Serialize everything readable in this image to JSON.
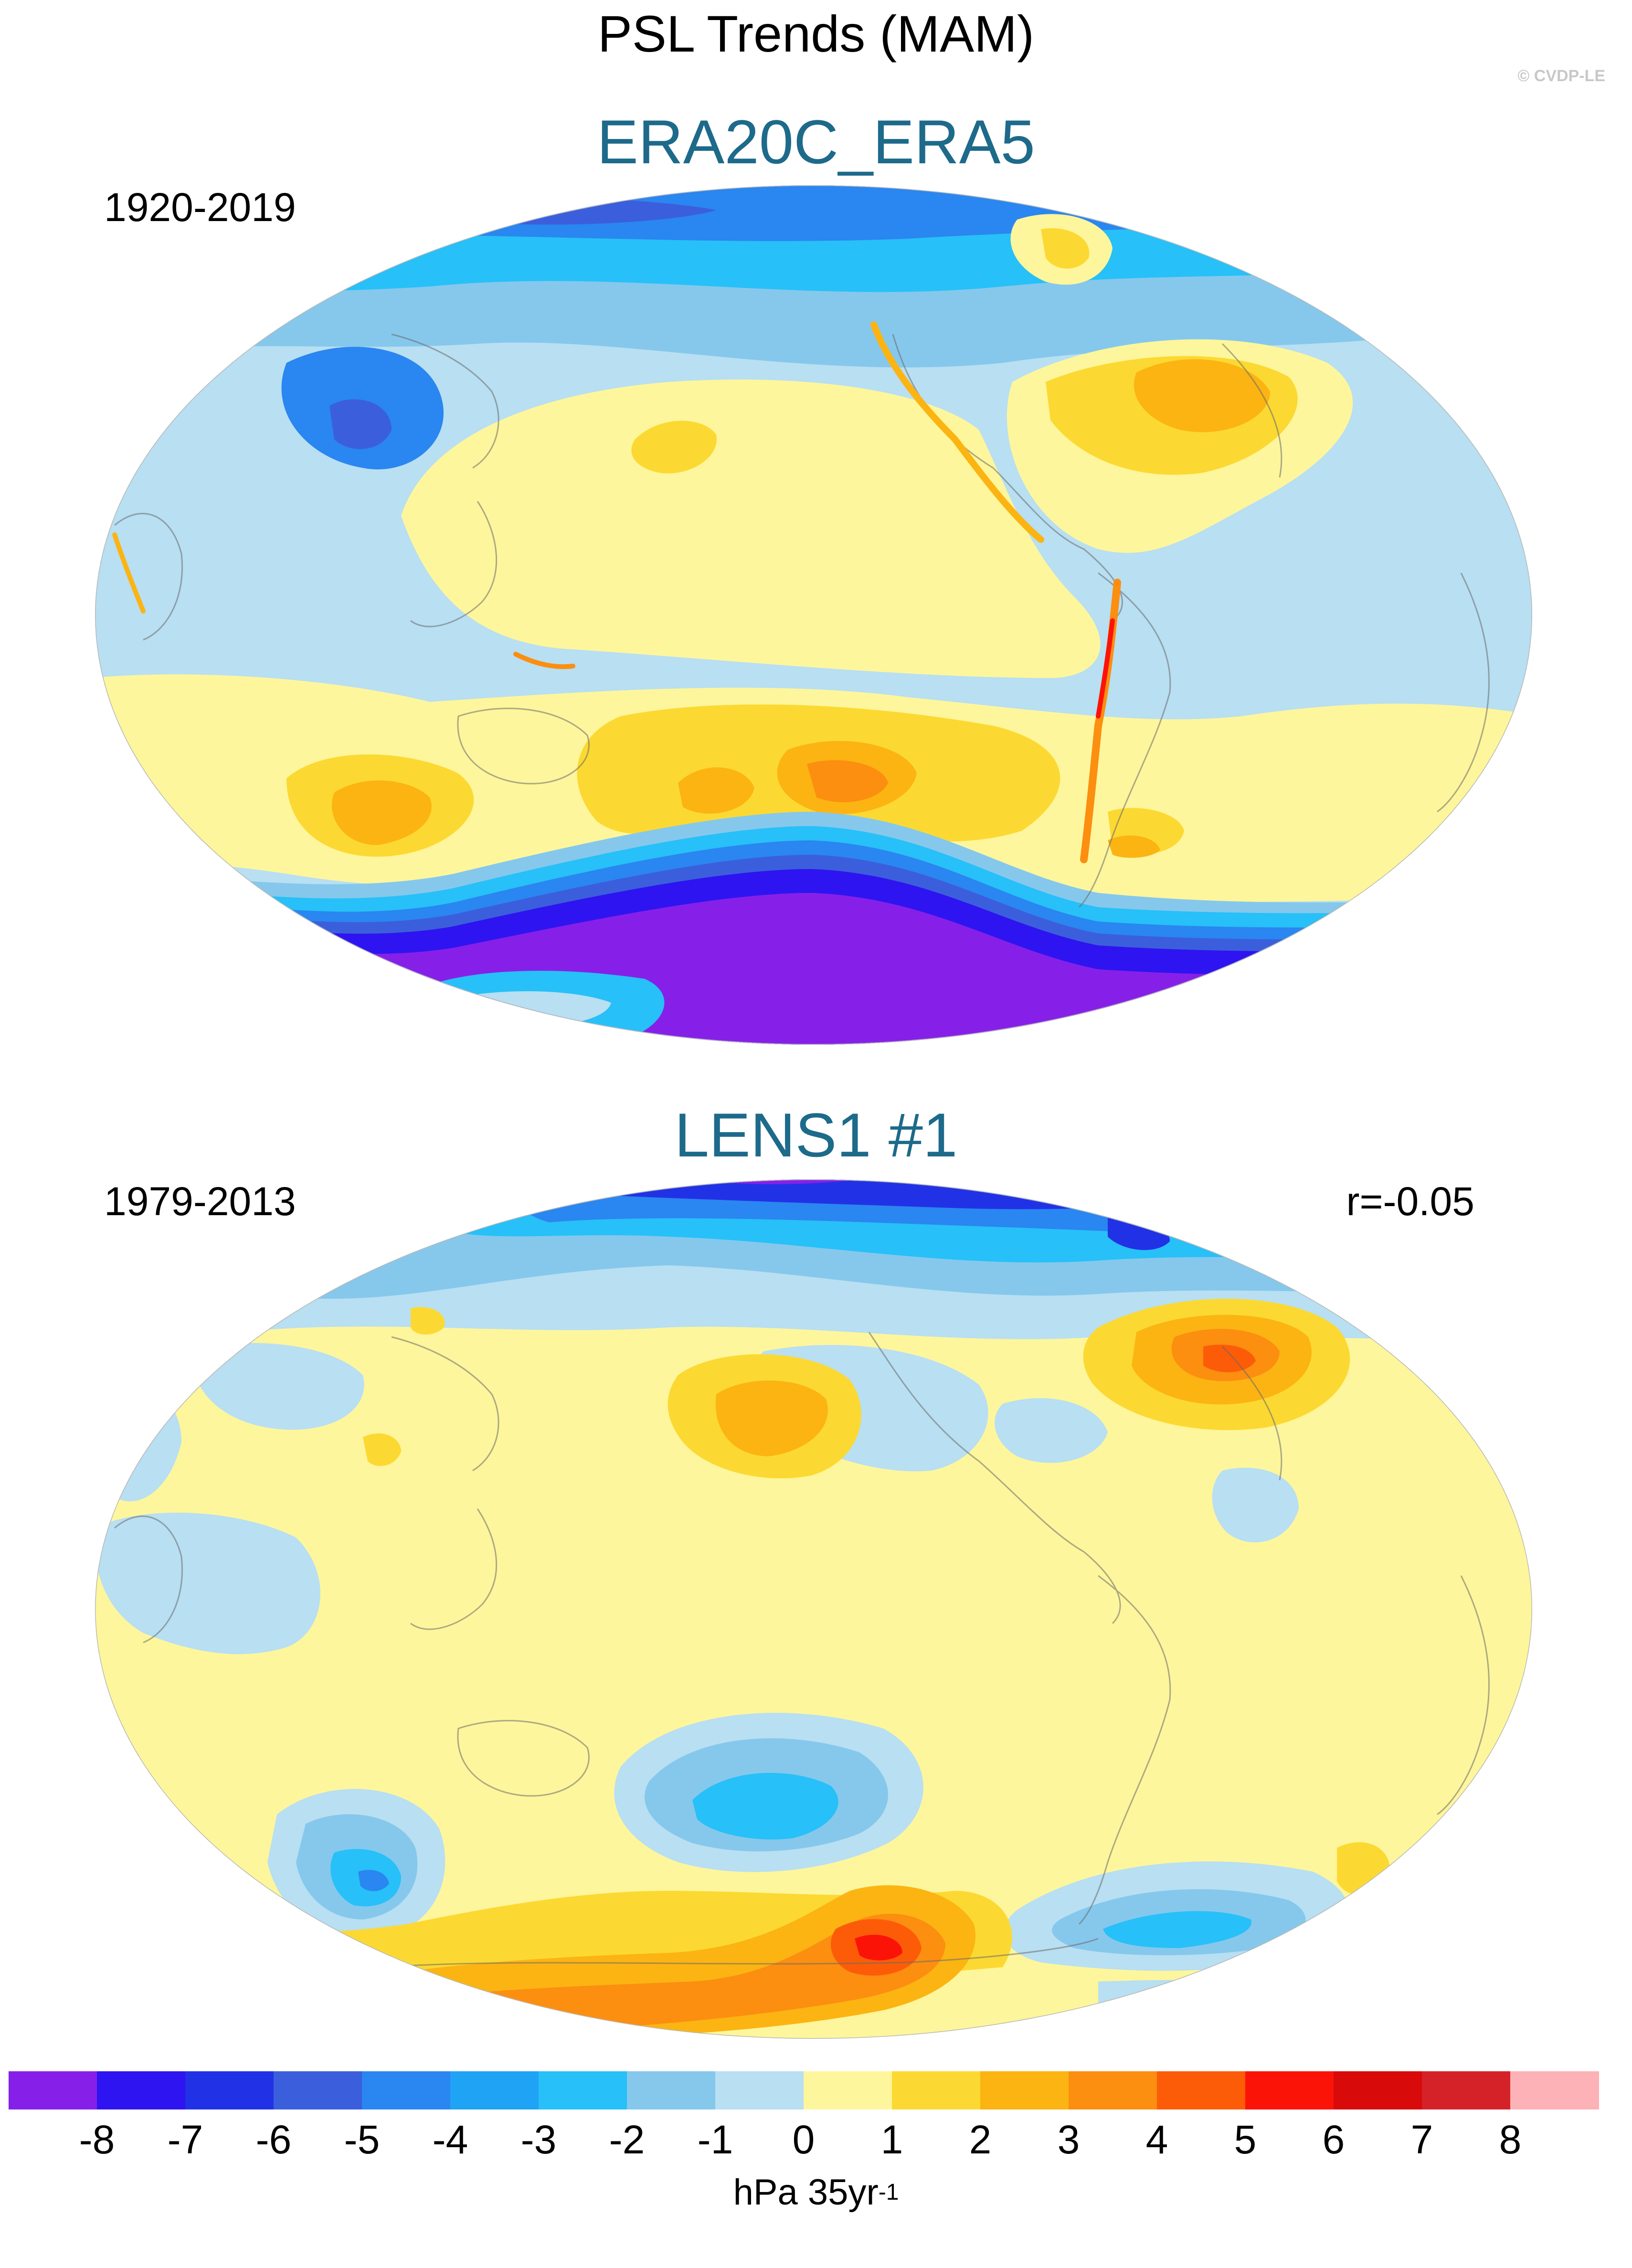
{
  "figure": {
    "title": "PSL Trends (MAM)",
    "credit": "© CVDP-LE"
  },
  "panels": [
    {
      "title": "ERA20C_ERA5",
      "period": "1920-2019",
      "correlation": ""
    },
    {
      "title": "LENS1 #1",
      "period": "1979-2013",
      "correlation": "r=-0.05"
    }
  ],
  "colorbar": {
    "tick_labels": [
      "-8",
      "-7",
      "-6",
      "-5",
      "-4",
      "-3",
      "-2",
      "-1",
      "0",
      "1",
      "2",
      "3",
      "4",
      "5",
      "6",
      "7",
      "8"
    ],
    "colors": [
      "#8620e8",
      "#2e14f0",
      "#2132e6",
      "#3b5fdc",
      "#2a86f0",
      "#1fa3f5",
      "#27c0f8",
      "#86c8ec",
      "#b8dff2",
      "#fef69c",
      "#fcd932",
      "#fcb412",
      "#fc8e10",
      "#fc5c08",
      "#fc1308",
      "#d80a0a",
      "#d42228",
      "#fcb2b6"
    ],
    "units_main": "hPa 35yr",
    "units_exp": "-1"
  }
}
